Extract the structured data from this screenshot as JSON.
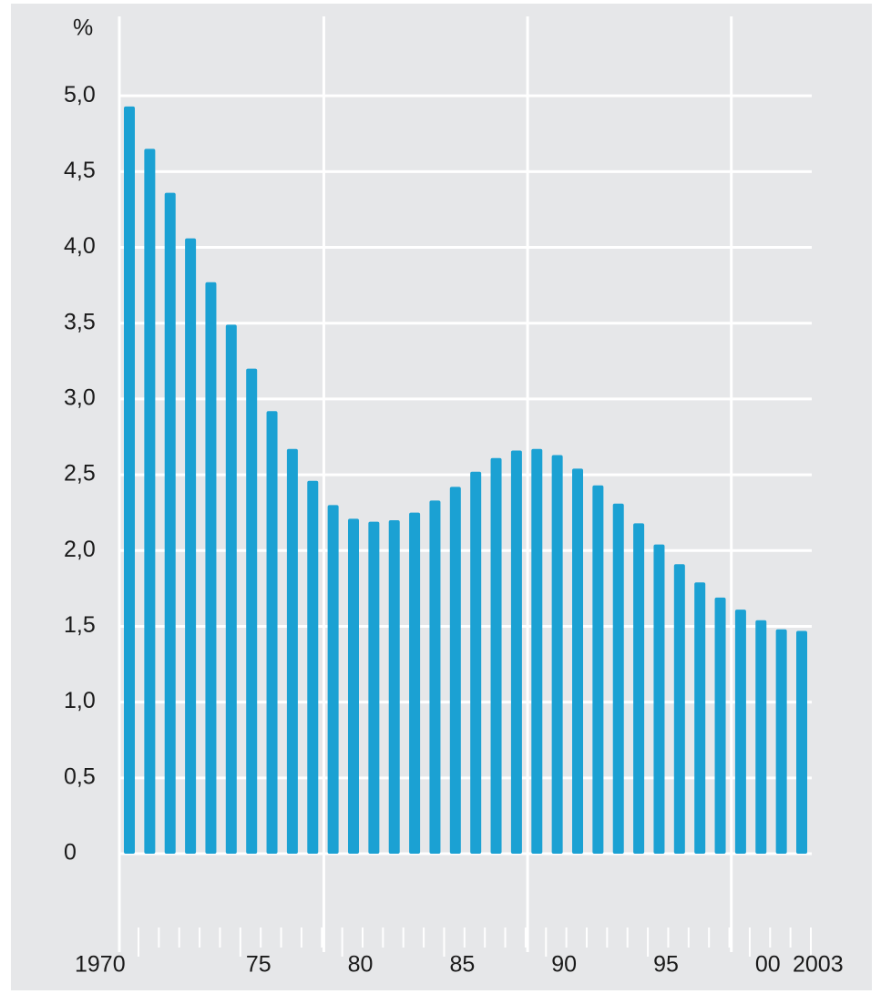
{
  "chart_data": {
    "type": "bar",
    "y_label": "%",
    "categories": [
      "1970",
      null,
      null,
      null,
      null,
      "75",
      null,
      null,
      null,
      null,
      "80",
      null,
      null,
      null,
      null,
      "85",
      null,
      null,
      null,
      null,
      "90",
      null,
      null,
      null,
      null,
      "95",
      null,
      null,
      null,
      null,
      "00",
      null,
      null,
      "2003"
    ],
    "values": [
      4.93,
      4.65,
      4.36,
      4.06,
      3.77,
      3.49,
      3.2,
      2.92,
      2.67,
      2.46,
      2.3,
      2.21,
      2.19,
      2.2,
      2.25,
      2.33,
      2.42,
      2.52,
      2.61,
      2.66,
      2.67,
      2.63,
      2.54,
      2.43,
      2.31,
      2.18,
      2.04,
      1.91,
      1.79,
      1.69,
      1.61,
      1.54,
      1.48,
      1.47
    ],
    "color": "#1ba1d3",
    "ylim": [
      0,
      5.5
    ],
    "yticks": [
      0,
      {
        "value": 0.5,
        "label": "0,5"
      },
      {
        "value": 1,
        "label": "1,0"
      },
      {
        "value": 1.5,
        "label": "1,5"
      },
      {
        "value": 2,
        "label": "2,0"
      },
      {
        "value": 2.5,
        "label": "2,5"
      },
      {
        "value": 3,
        "label": "3,0"
      },
      {
        "value": 3.5,
        "label": "3,5"
      },
      {
        "value": 4,
        "label": "4,0"
      },
      {
        "value": 4.5,
        "label": "4,5"
      },
      {
        "value": 5,
        "label": "5,0"
      }
    ],
    "grid": true
  }
}
